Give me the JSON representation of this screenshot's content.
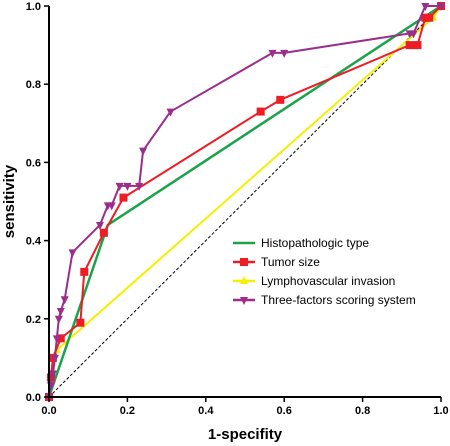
{
  "chart_data": {
    "type": "line",
    "title": "",
    "xlabel": "1-specifity",
    "ylabel": "sensitivity",
    "xlim": [
      0,
      1
    ],
    "ylim": [
      0,
      1
    ],
    "x_ticks": [
      "0.0",
      "0.2",
      "0.4",
      "0.6",
      "0.8",
      "1.0"
    ],
    "y_ticks": [
      "0.0",
      "0.2",
      "0.4",
      "0.6",
      "0.8",
      "1.0"
    ],
    "grid": false,
    "legend_position": "bottom-right",
    "reference_line": {
      "style": "dashed",
      "color": "#000000",
      "points": [
        [
          0,
          0
        ],
        [
          1,
          1
        ]
      ]
    },
    "series": [
      {
        "name": "Histopathologic type",
        "color": "#1aa34a",
        "marker": "none",
        "points": [
          [
            0,
            0
          ],
          [
            0.15,
            0.44
          ],
          [
            1.0,
            1.0
          ]
        ]
      },
      {
        "name": "Tumor size",
        "color": "#ee1c24",
        "marker": "square",
        "points": [
          [
            0,
            0
          ],
          [
            0.005,
            0.05
          ],
          [
            0.01,
            0.1
          ],
          [
            0.03,
            0.15
          ],
          [
            0.08,
            0.19
          ],
          [
            0.09,
            0.32
          ],
          [
            0.14,
            0.42
          ],
          [
            0.19,
            0.51
          ],
          [
            0.54,
            0.73
          ],
          [
            0.59,
            0.76
          ],
          [
            0.92,
            0.9
          ],
          [
            0.94,
            0.9
          ],
          [
            0.96,
            0.97
          ],
          [
            0.97,
            0.97
          ],
          [
            1.0,
            1.0
          ]
        ]
      },
      {
        "name": "Lymphovascular invasion",
        "color": "#f4f000",
        "marker": "triangle-up",
        "points": [
          [
            0,
            0
          ],
          [
            0.02,
            0.12
          ],
          [
            0.98,
            0.97
          ],
          [
            1.0,
            1.0
          ]
        ]
      },
      {
        "name": "Three-factors scoring system",
        "color": "#9b2d8c",
        "marker": "triangle-down",
        "points": [
          [
            0,
            0
          ],
          [
            0.005,
            0.03
          ],
          [
            0.01,
            0.06
          ],
          [
            0.015,
            0.1
          ],
          [
            0.02,
            0.15
          ],
          [
            0.025,
            0.2
          ],
          [
            0.03,
            0.22
          ],
          [
            0.04,
            0.25
          ],
          [
            0.06,
            0.37
          ],
          [
            0.13,
            0.44
          ],
          [
            0.15,
            0.49
          ],
          [
            0.16,
            0.49
          ],
          [
            0.18,
            0.54
          ],
          [
            0.2,
            0.54
          ],
          [
            0.23,
            0.54
          ],
          [
            0.24,
            0.63
          ],
          [
            0.31,
            0.73
          ],
          [
            0.57,
            0.88
          ],
          [
            0.6,
            0.88
          ],
          [
            0.92,
            0.93
          ],
          [
            0.93,
            0.93
          ],
          [
            0.96,
            1.0
          ],
          [
            1.0,
            1.0
          ]
        ]
      }
    ]
  }
}
